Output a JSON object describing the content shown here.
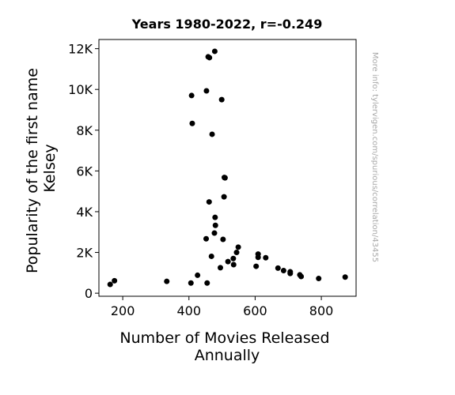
{
  "chart_data": {
    "type": "scatter",
    "title": "Years 1980-2022, r=-0.249",
    "xlabel": [
      "Number of Movies Released",
      "Annually"
    ],
    "ylabel": [
      "Popularity of the first name",
      "Kelsey"
    ],
    "xlim": [
      128,
      905
    ],
    "ylim": [
      -150,
      12450
    ],
    "xticks": [
      {
        "v": 200,
        "label": "200"
      },
      {
        "v": 400,
        "label": "400"
      },
      {
        "v": 600,
        "label": "600"
      },
      {
        "v": 800,
        "label": "800"
      }
    ],
    "yticks": [
      {
        "v": 0,
        "label": "0"
      },
      {
        "v": 2000,
        "label": "2K"
      },
      {
        "v": 4000,
        "label": "4K"
      },
      {
        "v": 6000,
        "label": "6K"
      },
      {
        "v": 8000,
        "label": "8K"
      },
      {
        "v": 10000,
        "label": "10K"
      },
      {
        "v": 12000,
        "label": "12K"
      }
    ],
    "grid": false,
    "marker_color": "#000000",
    "watermark": "More info: tylervigen.com/spurious/correlation/43455",
    "points": [
      {
        "x": 162,
        "y": 430
      },
      {
        "x": 175,
        "y": 610
      },
      {
        "x": 333,
        "y": 580
      },
      {
        "x": 406,
        "y": 500
      },
      {
        "x": 426,
        "y": 880
      },
      {
        "x": 455,
        "y": 500
      },
      {
        "x": 408,
        "y": 9700
      },
      {
        "x": 410,
        "y": 8330
      },
      {
        "x": 453,
        "y": 9930
      },
      {
        "x": 458,
        "y": 11600
      },
      {
        "x": 462,
        "y": 11560
      },
      {
        "x": 478,
        "y": 11870
      },
      {
        "x": 470,
        "y": 7800
      },
      {
        "x": 499,
        "y": 9500
      },
      {
        "x": 507,
        "y": 5680
      },
      {
        "x": 509,
        "y": 5660
      },
      {
        "x": 506,
        "y": 4730
      },
      {
        "x": 461,
        "y": 4480
      },
      {
        "x": 479,
        "y": 3720
      },
      {
        "x": 480,
        "y": 3330
      },
      {
        "x": 477,
        "y": 2950
      },
      {
        "x": 452,
        "y": 2670
      },
      {
        "x": 503,
        "y": 2640
      },
      {
        "x": 549,
        "y": 2260
      },
      {
        "x": 544,
        "y": 2000
      },
      {
        "x": 468,
        "y": 1810
      },
      {
        "x": 534,
        "y": 1700
      },
      {
        "x": 518,
        "y": 1550
      },
      {
        "x": 535,
        "y": 1400
      },
      {
        "x": 495,
        "y": 1250
      },
      {
        "x": 609,
        "y": 1920
      },
      {
        "x": 609,
        "y": 1760
      },
      {
        "x": 632,
        "y": 1740
      },
      {
        "x": 603,
        "y": 1320
      },
      {
        "x": 669,
        "y": 1230
      },
      {
        "x": 686,
        "y": 1110
      },
      {
        "x": 706,
        "y": 1050
      },
      {
        "x": 706,
        "y": 970
      },
      {
        "x": 735,
        "y": 900
      },
      {
        "x": 739,
        "y": 820
      },
      {
        "x": 792,
        "y": 720
      },
      {
        "x": 872,
        "y": 790
      }
    ]
  }
}
